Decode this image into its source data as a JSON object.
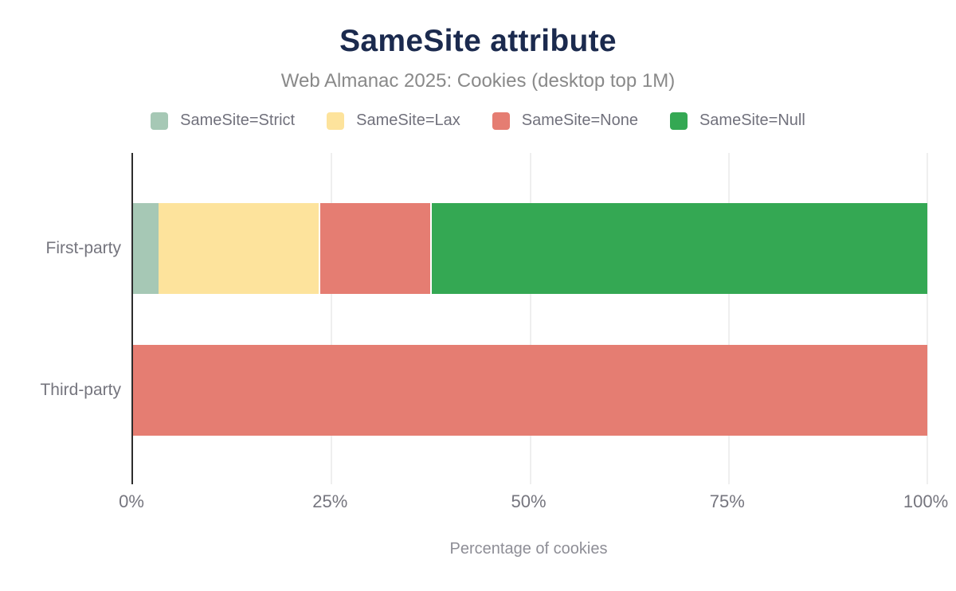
{
  "header": {
    "title": "SameSite attribute",
    "subtitle": "Web Almanac 2025: Cookies (desktop top 1M)"
  },
  "chart_data": {
    "type": "bar",
    "orientation": "horizontal",
    "stacked": true,
    "title": "SameSite attribute",
    "subtitle": "Web Almanac 2025: Cookies (desktop top 1M)",
    "categories": [
      "First-party",
      "Third-party"
    ],
    "series": [
      {
        "name": "SameSite=Strict",
        "color": "#a6c8b5",
        "values": [
          3.2,
          0
        ]
      },
      {
        "name": "SameSite=Lax",
        "color": "#fde39c",
        "values": [
          20.2,
          0
        ]
      },
      {
        "name": "SameSite=None",
        "color": "#e57d72",
        "values": [
          14.0,
          100
        ]
      },
      {
        "name": "SameSite=Null",
        "color": "#34a853",
        "values": [
          62.6,
          0
        ]
      }
    ],
    "x_ticks": [
      {
        "label": "0%",
        "value": 0
      },
      {
        "label": "25%",
        "value": 25
      },
      {
        "label": "50%",
        "value": 50
      },
      {
        "label": "75%",
        "value": 75
      },
      {
        "label": "100%",
        "value": 100
      }
    ],
    "xlim": [
      0,
      100
    ],
    "xlabel": "Percentage of cookies",
    "ylabel": "",
    "grid": true,
    "legend_position": "top"
  },
  "colors": {
    "title": "#1b2a4e",
    "subtitle": "#898989",
    "axis_line": "#2d2d2d",
    "gridline": "#efefef",
    "tick_text": "#75757e",
    "background": "#ffffff"
  }
}
